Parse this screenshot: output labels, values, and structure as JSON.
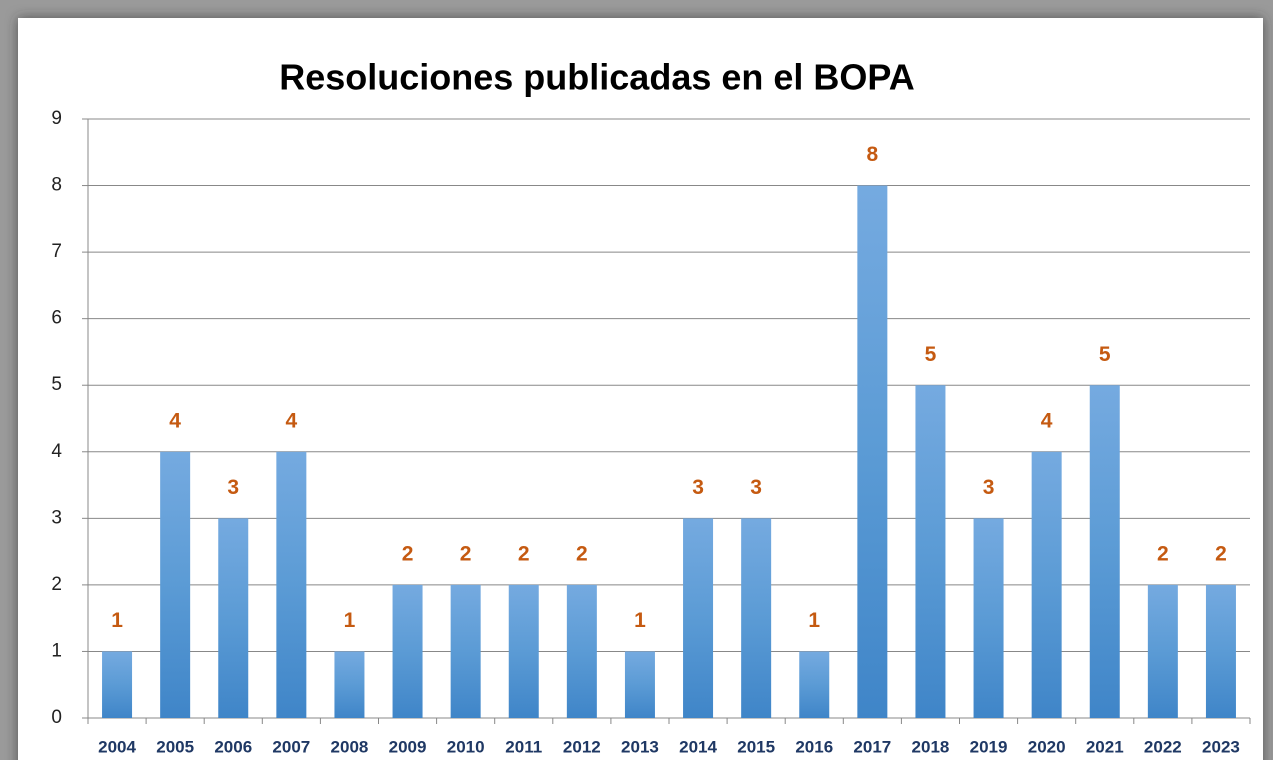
{
  "chart_data": {
    "type": "bar",
    "title": "Resoluciones publicadas en el BOPA",
    "categories": [
      "2004",
      "2005",
      "2006",
      "2007",
      "2008",
      "2009",
      "2010",
      "2011",
      "2012",
      "2013",
      "2014",
      "2015",
      "2016",
      "2017",
      "2018",
      "2019",
      "2020",
      "2021",
      "2022",
      "2023"
    ],
    "values": [
      1,
      4,
      3,
      4,
      1,
      2,
      2,
      2,
      2,
      1,
      3,
      3,
      1,
      8,
      5,
      3,
      4,
      5,
      2,
      2
    ],
    "color": "#5b9bd5",
    "ylim": [
      0,
      9
    ],
    "yticks": [
      0,
      1,
      2,
      3,
      4,
      5,
      6,
      7,
      8,
      9
    ],
    "grid": true
  }
}
